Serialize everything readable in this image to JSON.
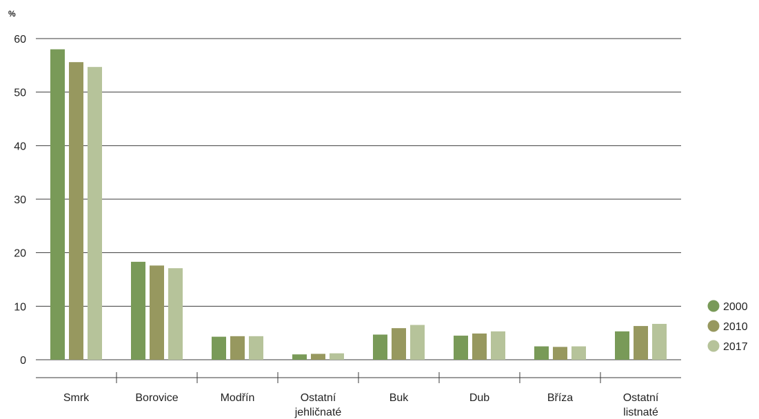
{
  "chart_data": {
    "type": "bar",
    "unit_label": "%",
    "categories": [
      [
        "Smrk"
      ],
      [
        "Borovice"
      ],
      [
        "Modřín"
      ],
      [
        "Ostatní",
        "jehličnaté"
      ],
      [
        "Buk"
      ],
      [
        "Dub"
      ],
      [
        "Bříza"
      ],
      [
        "Ostatní",
        "listnaté"
      ]
    ],
    "series": [
      {
        "name": "2000",
        "color": "#799a58",
        "values": [
          58.0,
          18.3,
          4.3,
          1.0,
          4.7,
          4.5,
          2.5,
          5.3
        ]
      },
      {
        "name": "2010",
        "color": "#97985f",
        "values": [
          55.6,
          17.6,
          4.4,
          1.1,
          5.9,
          4.9,
          2.4,
          6.3
        ]
      },
      {
        "name": "2017",
        "color": "#b6c39a",
        "values": [
          54.7,
          17.1,
          4.4,
          1.2,
          6.5,
          5.3,
          2.5,
          6.7
        ]
      }
    ],
    "y_ticks": [
      "0",
      "10",
      "20",
      "30",
      "40",
      "50",
      "60"
    ],
    "ylim": [
      0,
      60
    ],
    "grid": true,
    "legend_position": "right"
  }
}
